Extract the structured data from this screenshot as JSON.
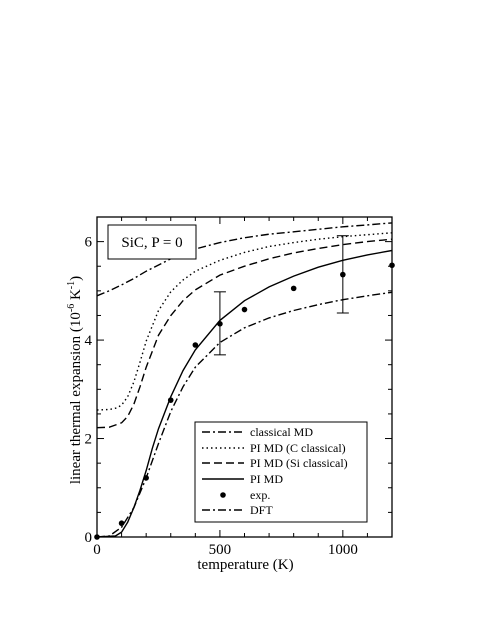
{
  "chart_data": {
    "type": "line",
    "title": "",
    "annotation": "SiC, P = 0",
    "xlabel": "temperature (K)",
    "ylabel_parts": {
      "main": "linear thermal expansion (10",
      "exp1": "-6",
      "unit": " K",
      "exp2": "-1",
      "close": ")"
    },
    "xlim": [
      0,
      1200
    ],
    "ylim": [
      0,
      6.5
    ],
    "x_ticks": [
      0,
      500,
      1000
    ],
    "y_ticks": [
      0,
      2,
      4,
      6
    ],
    "grid": false,
    "legend_position": "bottom-right",
    "legend_entries": [
      "classical MD",
      "PI MD (C  classical)",
      "PI MD (Si classical)",
      "PI MD",
      "exp.",
      "DFT"
    ],
    "series": [
      {
        "name": "classical MD",
        "style": "dashdot",
        "x": [
          0,
          50,
          100,
          150,
          200,
          300,
          400,
          500,
          600,
          700,
          800,
          900,
          1000,
          1100,
          1200
        ],
        "y": [
          4.9,
          5.0,
          5.12,
          5.25,
          5.4,
          5.65,
          5.85,
          5.98,
          6.08,
          6.15,
          6.2,
          6.25,
          6.3,
          6.34,
          6.38
        ]
      },
      {
        "name": "PI MD (C  classical)",
        "style": "dotted",
        "x": [
          0,
          50,
          80,
          100,
          125,
          150,
          175,
          200,
          250,
          300,
          350,
          400,
          500,
          600,
          700,
          800,
          900,
          1000,
          1100,
          1200
        ],
        "y": [
          2.58,
          2.59,
          2.62,
          2.68,
          2.85,
          3.15,
          3.55,
          3.98,
          4.6,
          4.98,
          5.22,
          5.4,
          5.62,
          5.78,
          5.9,
          5.98,
          6.05,
          6.1,
          6.14,
          6.18
        ]
      },
      {
        "name": "PI MD (Si classical)",
        "style": "dashed",
        "x": [
          0,
          50,
          100,
          125,
          150,
          175,
          200,
          250,
          300,
          350,
          400,
          500,
          600,
          700,
          800,
          900,
          1000,
          1100,
          1200
        ],
        "y": [
          2.22,
          2.23,
          2.32,
          2.45,
          2.7,
          3.05,
          3.45,
          4.1,
          4.5,
          4.8,
          5.02,
          5.32,
          5.5,
          5.65,
          5.77,
          5.86,
          5.94,
          6.0,
          6.05
        ]
      },
      {
        "name": "PI MD",
        "style": "solid",
        "x": [
          0,
          75,
          100,
          125,
          150,
          175,
          200,
          225,
          250,
          300,
          350,
          400,
          500,
          600,
          700,
          800,
          900,
          1000,
          1100,
          1200
        ],
        "y": [
          0.0,
          0.02,
          0.1,
          0.3,
          0.6,
          0.95,
          1.35,
          1.8,
          2.2,
          2.85,
          3.38,
          3.8,
          4.4,
          4.8,
          5.08,
          5.3,
          5.48,
          5.62,
          5.73,
          5.82
        ]
      },
      {
        "name": "exp.",
        "style": "markers",
        "x": [
          0,
          100,
          200,
          300,
          400,
          500,
          600,
          800,
          1000,
          1200
        ],
        "y": [
          0.0,
          0.28,
          1.2,
          2.78,
          3.9,
          4.33,
          4.62,
          5.05,
          5.33,
          5.52
        ]
      },
      {
        "name": "DFT",
        "style": "dashdot",
        "x": [
          0,
          50,
          100,
          150,
          200,
          250,
          300,
          350,
          400,
          500,
          600,
          700,
          800,
          900,
          1000,
          1100,
          1200
        ],
        "y": [
          0.0,
          0.02,
          0.2,
          0.6,
          1.2,
          1.9,
          2.55,
          3.05,
          3.45,
          3.95,
          4.25,
          4.45,
          4.6,
          4.72,
          4.82,
          4.9,
          4.97
        ]
      }
    ],
    "error_bars": [
      {
        "x": 500,
        "y_low": 3.7,
        "y_high": 4.98
      },
      {
        "x": 1000,
        "y_low": 4.55,
        "y_high": 6.12
      }
    ]
  }
}
